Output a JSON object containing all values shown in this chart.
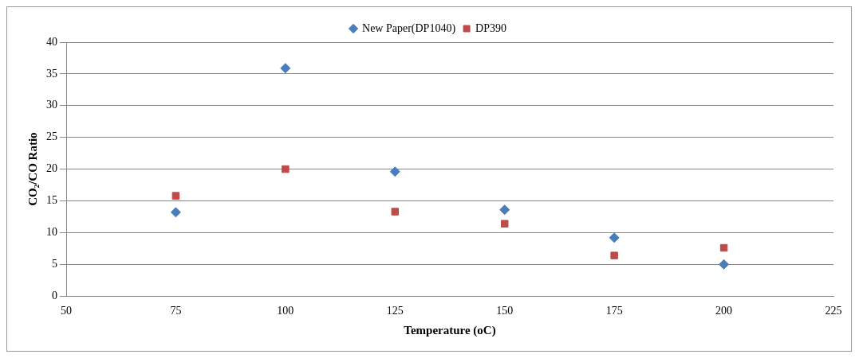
{
  "chart_data": {
    "type": "scatter",
    "xlabel": "Temperature (oC)",
    "ylabel": "CO₂/CO Ratio",
    "xlim": [
      50,
      225
    ],
    "xticks": [
      50,
      75,
      100,
      125,
      150,
      175,
      200,
      225
    ],
    "ylim": [
      0,
      40
    ],
    "yticks": [
      0,
      5,
      10,
      15,
      20,
      25,
      30,
      35,
      40
    ],
    "grid": "y",
    "legend": "top",
    "series": [
      {
        "name": "New Paper(DP1040)",
        "color": "#4a7ebb",
        "marker": "diamond",
        "x": [
          75,
          100,
          125,
          150,
          175,
          200
        ],
        "values": [
          13.2,
          35.9,
          19.6,
          13.6,
          9.2,
          5.0
        ]
      },
      {
        "name": "DP390",
        "color": "#be4b48",
        "marker": "square",
        "x": [
          75,
          100,
          125,
          150,
          175,
          200
        ],
        "values": [
          15.8,
          20.0,
          13.3,
          11.4,
          6.4,
          7.6
        ]
      }
    ]
  }
}
